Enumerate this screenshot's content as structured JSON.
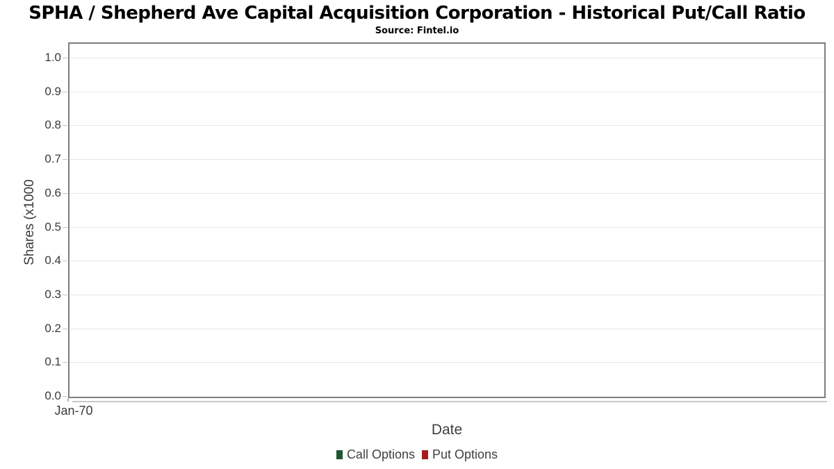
{
  "chart_data": {
    "type": "line",
    "title": "SPHA / Shepherd Ave Capital Acquisition Corporation - Historical Put/Call Ratio",
    "subtitle": "Source: Fintel.io",
    "xlabel": "Date",
    "ylabel": "Shares (x1000",
    "xticks": [
      {
        "label": "Jan-70"
      }
    ],
    "yticks": [
      {
        "label": "0.0",
        "value": 0.0
      },
      {
        "label": "0.1",
        "value": 0.1
      },
      {
        "label": "0.2",
        "value": 0.2
      },
      {
        "label": "0.3",
        "value": 0.3
      },
      {
        "label": "0.4",
        "value": 0.4
      },
      {
        "label": "0.5",
        "value": 0.5
      },
      {
        "label": "0.6",
        "value": 0.6
      },
      {
        "label": "0.7",
        "value": 0.7
      },
      {
        "label": "0.8",
        "value": 0.8
      },
      {
        "label": "0.9",
        "value": 0.9
      },
      {
        "label": "1.0",
        "value": 1.0
      }
    ],
    "ylim": [
      0,
      1.05
    ],
    "grid": true,
    "legend_position": "bottom",
    "series": [
      {
        "name": "Call Options",
        "color": "#1d5632",
        "values": []
      },
      {
        "name": "Put Options",
        "color": "#a61c1c",
        "values": []
      }
    ],
    "colors": {
      "plot_border": "#7d7d7d",
      "gridline": "#e7e7e7",
      "call_options": "#1d5632",
      "put_options": "#a61c1c"
    }
  }
}
